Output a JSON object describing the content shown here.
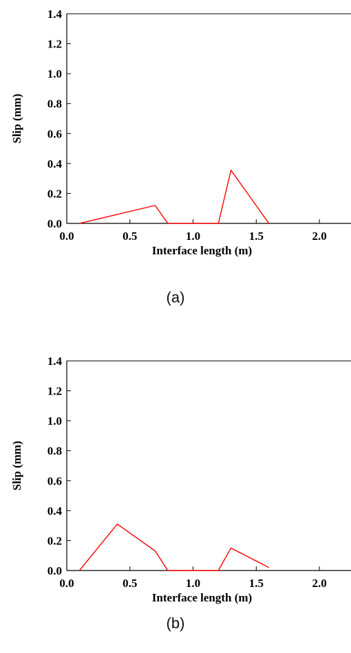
{
  "chart_data": [
    {
      "type": "line",
      "caption": "(a)",
      "title": "",
      "xlabel": "Interface length (m)",
      "ylabel": "Slip (mm)",
      "xlim": [
        0.0,
        2.25
      ],
      "ylim": [
        0.0,
        1.4
      ],
      "xticks": [
        "0.0",
        "0.5",
        "1.0",
        "1.5",
        "2.0"
      ],
      "yticks": [
        "0.0",
        "0.2",
        "0.4",
        "0.6",
        "0.8",
        "1.0",
        "1.2",
        "1.4"
      ],
      "grid": false,
      "series": [
        {
          "color": "#ff0000",
          "x": [
            0.1,
            0.7,
            0.8,
            1.2,
            1.3,
            1.6
          ],
          "y": [
            0.0,
            0.12,
            0.0,
            0.0,
            0.355,
            0.0
          ]
        }
      ]
    },
    {
      "type": "line",
      "caption": "(b)",
      "title": "",
      "xlabel": "Interface length (m)",
      "ylabel": "Slip (mm)",
      "xlim": [
        0.0,
        2.25
      ],
      "ylim": [
        0.0,
        1.4
      ],
      "xticks": [
        "0.0",
        "0.5",
        "1.0",
        "1.5",
        "2.0"
      ],
      "yticks": [
        "0.0",
        "0.2",
        "0.4",
        "0.6",
        "0.8",
        "1.0",
        "1.2",
        "1.4"
      ],
      "grid": false,
      "series": [
        {
          "color": "#ff0000",
          "x": [
            0.1,
            0.4,
            0.7,
            0.8,
            1.2,
            1.3,
            1.6
          ],
          "y": [
            0.0,
            0.31,
            0.13,
            0.0,
            0.0,
            0.15,
            0.02
          ]
        }
      ]
    }
  ]
}
